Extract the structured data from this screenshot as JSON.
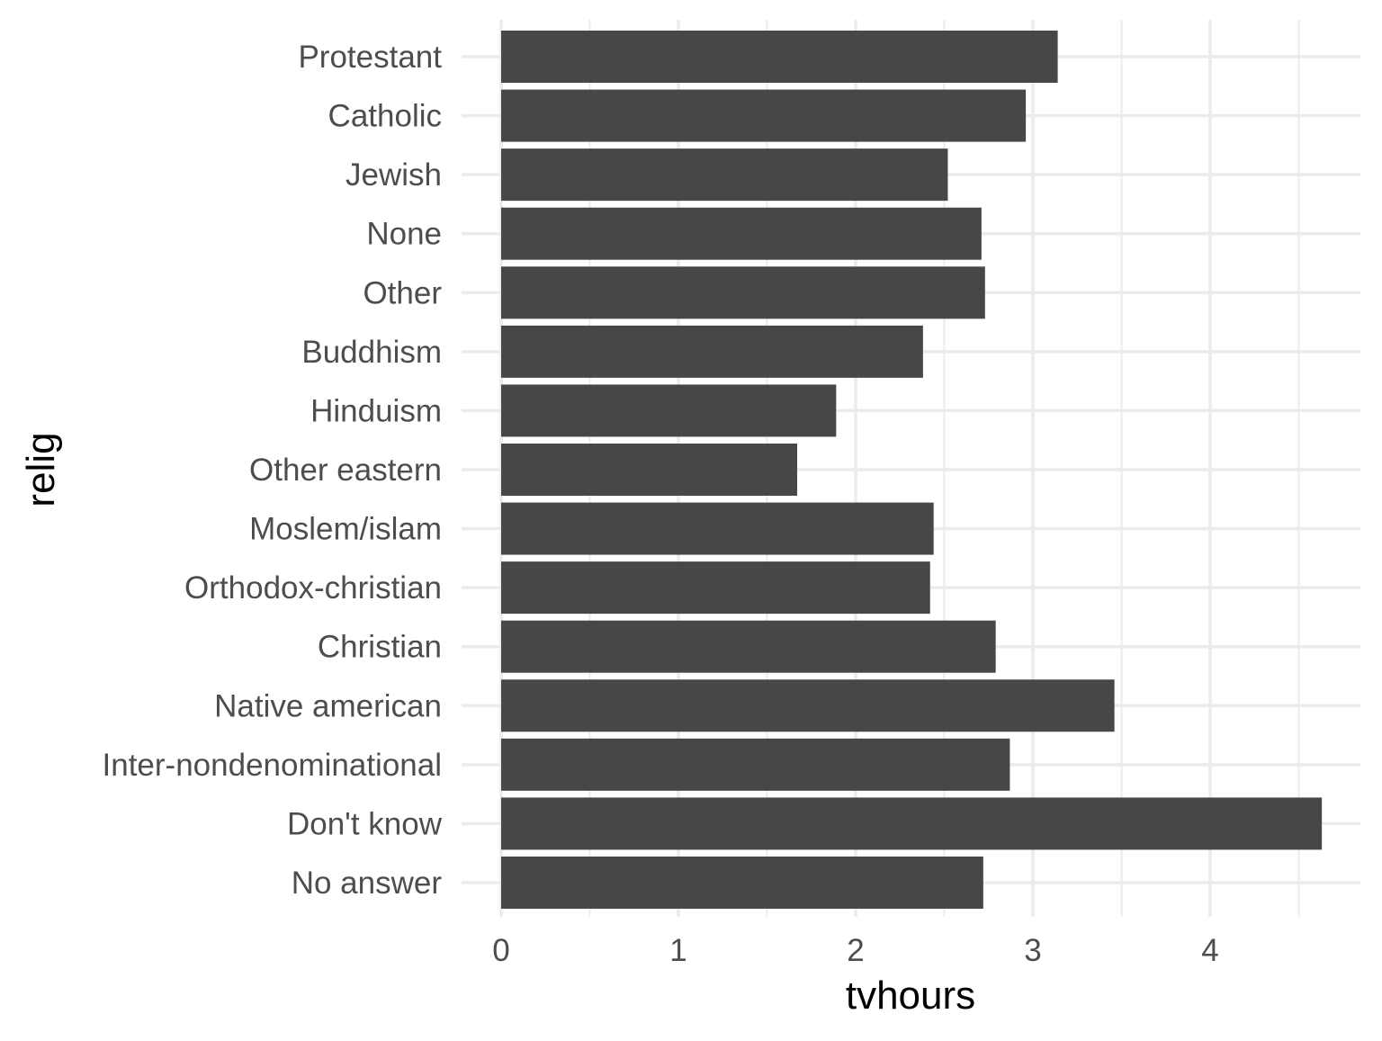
{
  "chart_data": {
    "type": "bar",
    "orientation": "horizontal",
    "xlabel": "tvhours",
    "ylabel": "relig",
    "xlim": [
      0,
      4.75
    ],
    "x_ticks": [
      0,
      1,
      2,
      3,
      4
    ],
    "x_tick_labels": [
      "0",
      "1",
      "2",
      "3",
      "4"
    ],
    "grid": true,
    "legend": "none",
    "categories": [
      "Protestant",
      "Catholic",
      "Jewish",
      "None",
      "Other",
      "Buddhism",
      "Hinduism",
      "Other eastern",
      "Moslem/islam",
      "Orthodox-christian",
      "Christian",
      "Native american",
      "Inter-nondenominational",
      "Don't know",
      "No answer"
    ],
    "values": [
      3.14,
      2.96,
      2.52,
      2.71,
      2.73,
      2.38,
      1.89,
      1.67,
      2.44,
      2.42,
      2.79,
      3.46,
      2.87,
      4.63,
      2.72
    ],
    "colors": {
      "bar": "#474747",
      "grid": "#ebebeb",
      "background": "#ffffff",
      "tick_text": "#4d4d4d",
      "title_text": "#000000"
    }
  }
}
